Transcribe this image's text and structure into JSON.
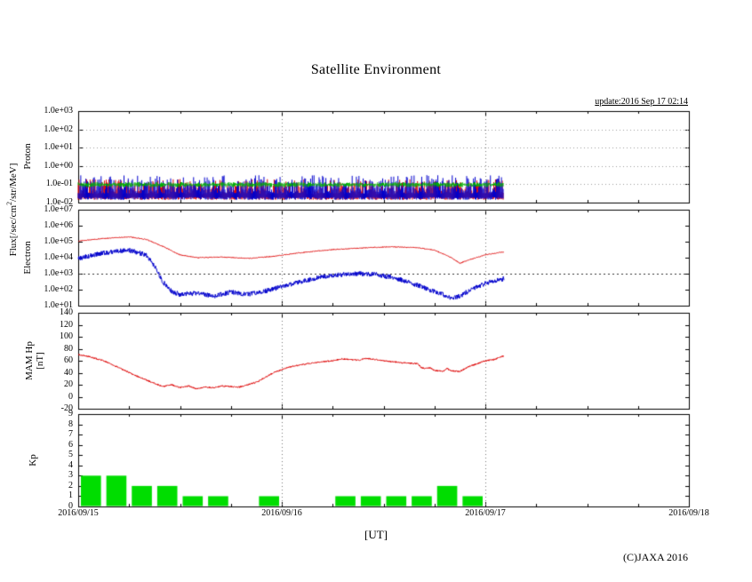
{
  "title": "Satellite Environment",
  "update_label": "update:2016 Sep 17 02:14",
  "copyright": "(C)JAXA 2016",
  "x_axis": {
    "unit": "[UT]",
    "tick_labels": [
      "2016/09/15",
      "2016/09/16",
      "2016/09/17",
      "2016/09/18"
    ],
    "range_hours": [
      0,
      72
    ]
  },
  "axis_labels": {
    "flux_pre": "Flux[/sec/cm",
    "flux_sup": "2",
    "flux_post": "/str/MeV]"
  },
  "colors": {
    "red": "#dd0000",
    "blue": "#0000cc",
    "green": "#00b000",
    "kp_bar": "#00dd00",
    "frame": "#000000",
    "grid_dotted": "#777777"
  },
  "chart_data": [
    {
      "name": "proton-flux",
      "ylabel": "Proton",
      "type": "scatter",
      "yscale": "log",
      "ylim": [
        0.01,
        1000
      ],
      "y_ticks": [
        "1.0e+03",
        "1.0e+02",
        "1.0e+01",
        "1.0e+00",
        "1.0e-01",
        "1.0e-02"
      ],
      "data_end_hour": 50.2,
      "description": "dense noisy spike band between about 0.02 and 0.3 flux, three channels",
      "series": [
        {
          "name": "proton-channel-red",
          "color": "#dd0000",
          "style": "spikes",
          "base_log10": -1.85,
          "top_log10_min": -1.55,
          "top_log10_max": -0.72,
          "bias": 1.3
        },
        {
          "name": "proton-channel-blue",
          "color": "#0000cc",
          "style": "spikes",
          "base_log10": -1.85,
          "top_log10_min": -1.5,
          "top_log10_max": -0.5,
          "bias": 1.6
        },
        {
          "name": "proton-channel-green",
          "color": "#00b000",
          "style": "band",
          "center_log10": -1.02,
          "spread_log10": 0.14
        }
      ]
    },
    {
      "name": "electron-flux",
      "ylabel": "Electron",
      "type": "line",
      "yscale": "log",
      "ylim": [
        10,
        10000000
      ],
      "y_ticks": [
        "1.0e+07",
        "1.0e+06",
        "1.0e+05",
        "1.0e+04",
        "1.0e+03",
        "1.0e+02",
        "1.0e+01"
      ],
      "threshold": 1000,
      "data_end_hour": 50.2,
      "series": [
        {
          "name": "electron-high-red",
          "color": "#dd0000",
          "noise_log10": 0.05,
          "keypoints": [
            [
              0,
              110000
            ],
            [
              3,
              160000
            ],
            [
              6,
              200000
            ],
            [
              8,
              140000
            ],
            [
              10,
              50000
            ],
            [
              12,
              15000
            ],
            [
              14,
              10000
            ],
            [
              17,
              11000
            ],
            [
              20,
              9000
            ],
            [
              23,
              12000
            ],
            [
              26,
              20000
            ],
            [
              30,
              32000
            ],
            [
              34,
              42000
            ],
            [
              37,
              48000
            ],
            [
              40,
              42000
            ],
            [
              42,
              30000
            ],
            [
              44,
              10000
            ],
            [
              45,
              4500
            ],
            [
              46,
              7000
            ],
            [
              48,
              15000
            ],
            [
              50.2,
              23000
            ]
          ]
        },
        {
          "name": "electron-low-blue",
          "color": "#0000cc",
          "noise_log10": 0.3,
          "keypoints": [
            [
              0,
              9000
            ],
            [
              3,
              20000
            ],
            [
              6,
              30000
            ],
            [
              8,
              15000
            ],
            [
              9,
              3000
            ],
            [
              10,
              300
            ],
            [
              11,
              80
            ],
            [
              12,
              50
            ],
            [
              14,
              60
            ],
            [
              16,
              40
            ],
            [
              18,
              70
            ],
            [
              20,
              50
            ],
            [
              22,
              80
            ],
            [
              24,
              150
            ],
            [
              27,
              400
            ],
            [
              30,
              800
            ],
            [
              33,
              1000
            ],
            [
              35,
              900
            ],
            [
              37,
              600
            ],
            [
              39,
              300
            ],
            [
              41,
              120
            ],
            [
              43,
              50
            ],
            [
              44,
              30
            ],
            [
              45,
              40
            ],
            [
              46,
              80
            ],
            [
              47,
              150
            ],
            [
              48,
              250
            ],
            [
              50.2,
              500
            ]
          ]
        }
      ]
    },
    {
      "name": "mam-hp",
      "ylabel_line1": "MAM Hp",
      "ylabel_line2": "[nT]",
      "type": "line",
      "yscale": "linear",
      "ylim": [
        -20,
        140
      ],
      "y_ticks": [
        "140",
        "120",
        "100",
        "80",
        "60",
        "40",
        "20",
        "0",
        "-20"
      ],
      "data_end_hour": 50.2,
      "series": [
        {
          "name": "hp-red",
          "color": "#dd0000",
          "noise": 1.2,
          "keypoints": [
            [
              0,
              70
            ],
            [
              1,
              68
            ],
            [
              3,
              60
            ],
            [
              5,
              47
            ],
            [
              7,
              34
            ],
            [
              9,
              22
            ],
            [
              10,
              17
            ],
            [
              11,
              20
            ],
            [
              12,
              15
            ],
            [
              13,
              18
            ],
            [
              14,
              13
            ],
            [
              15,
              16
            ],
            [
              16,
              15
            ],
            [
              17,
              18
            ],
            [
              18,
              17
            ],
            [
              19,
              16
            ],
            [
              20,
              20
            ],
            [
              21,
              24
            ],
            [
              22,
              32
            ],
            [
              23,
              40
            ],
            [
              25,
              50
            ],
            [
              27,
              55
            ],
            [
              28,
              57
            ],
            [
              30,
              60
            ],
            [
              31,
              63
            ],
            [
              33,
              61
            ],
            [
              34,
              64
            ],
            [
              36,
              60
            ],
            [
              38,
              57
            ],
            [
              40,
              55
            ],
            [
              40.5,
              48
            ],
            [
              41.5,
              48
            ],
            [
              42,
              44
            ],
            [
              43,
              42
            ],
            [
              43.5,
              47
            ],
            [
              44,
              43
            ],
            [
              45,
              42
            ],
            [
              46,
              50
            ],
            [
              47,
              55
            ],
            [
              48,
              60
            ],
            [
              49,
              62
            ],
            [
              50.2,
              68
            ]
          ]
        }
      ]
    },
    {
      "name": "kp-index",
      "ylabel": "Kp",
      "type": "bar",
      "yscale": "linear",
      "ylim": [
        0,
        9
      ],
      "y_ticks": [
        "9",
        "8",
        "7",
        "6",
        "5",
        "4",
        "3",
        "2",
        "1",
        "0"
      ],
      "bin_hours": 3,
      "bar_color": "#00dd00",
      "values": [
        3,
        3,
        2,
        2,
        1,
        1,
        0,
        1,
        0,
        0,
        1,
        1,
        1,
        1,
        2,
        1
      ]
    }
  ]
}
